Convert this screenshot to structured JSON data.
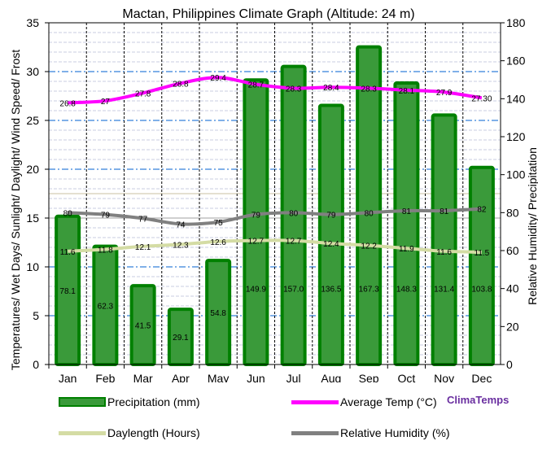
{
  "chart_data": {
    "type": "bar+line",
    "title": "Mactan, Philippines Climate Graph (Altitude: 24 m)",
    "ylabel_left": "Temperatures/ Wet Days/ Sunlight/ Daylight/ Wind Speed/ Frost",
    "ylabel_right": "Relative Humidity/ Precipitation",
    "ylim_left": [
      0,
      35
    ],
    "ylim_right": [
      0,
      180
    ],
    "yticks_left": [
      0,
      5,
      10,
      15,
      20,
      25,
      30,
      35
    ],
    "yticks_right": [
      0,
      20,
      40,
      60,
      80,
      100,
      120,
      140,
      160,
      180
    ],
    "categories": [
      "Jan",
      "Feb",
      "Mar",
      "Apr",
      "May",
      "Jun",
      "Jul",
      "Aug",
      "Sep",
      "Oct",
      "Nov",
      "Dec"
    ],
    "grid": true,
    "series": [
      {
        "name": "Precipitation (mm)",
        "type": "bar",
        "axis": "right",
        "color": "#008000",
        "fill": "#3a9a3a",
        "values": [
          78.1,
          62.3,
          41.5,
          29.1,
          54.8,
          149.9,
          157.0,
          136.5,
          167.3,
          148.3,
          131.4,
          103.8
        ],
        "labels": [
          "78.1",
          "62.3",
          "41.5",
          "29.1",
          "54.8",
          "149.9",
          "157.0",
          "136.5",
          "167.3",
          "148.3",
          "131.4",
          "103.8"
        ]
      },
      {
        "name": "Average Temp (°C)",
        "type": "line",
        "axis": "left",
        "color": "#ff00ff",
        "values": [
          26.8,
          27,
          27.8,
          28.8,
          29.4,
          28.7,
          28.3,
          28.4,
          28.3,
          28.1,
          27.9,
          27.3
        ],
        "labels": [
          "26.8",
          "27",
          "27.8",
          "28.8",
          "29.4",
          "28.7",
          "28.3",
          "28.4",
          "28.3",
          "28.1",
          "27.9",
          "27.30"
        ]
      },
      {
        "name": "Daylength (Hours)",
        "type": "line",
        "axis": "left",
        "color": "#d4dca4",
        "values": [
          11.6,
          11.8,
          12.1,
          12.3,
          12.6,
          12.7,
          12.7,
          12.4,
          12.2,
          11.9,
          11.6,
          11.5
        ],
        "labels": [
          "11.6",
          "11.8",
          "12.1",
          "12.3",
          "12.6",
          "12.7",
          "12.7",
          "12.4",
          "12.2",
          "11.9",
          "11.6",
          "11.5"
        ]
      },
      {
        "name": "Relative Humidity (%)",
        "type": "line",
        "axis": "right",
        "color": "#808080",
        "values": [
          80,
          79,
          77,
          74,
          75,
          79,
          80,
          79,
          80,
          81,
          81,
          82
        ],
        "labels": [
          "80",
          "79",
          "77",
          "74",
          "75",
          "79",
          "80",
          "79",
          "80",
          "81",
          "81",
          "82"
        ]
      }
    ]
  },
  "brand": "ClimaTemps"
}
